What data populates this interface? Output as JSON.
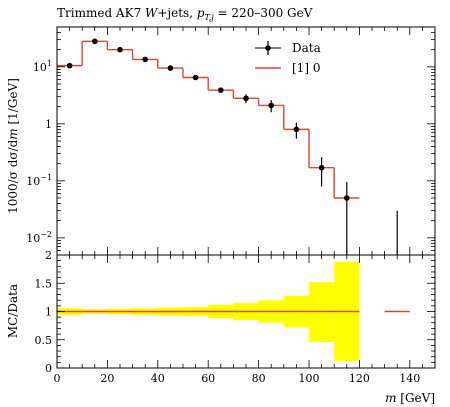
{
  "chart_data": [
    {
      "type": "line",
      "title": "Trimmed AK7 W+jets, p_{T,j} = 220–300 GeV",
      "title_parts": {
        "prefix": "Trimmed AK7 ",
        "w": "W",
        "jets": "+jets, ",
        "p": "p",
        "sub": "T,j",
        "range": " = 220–300 GeV"
      },
      "ylabel": "1000/σ dσ/dm [1/GeV]",
      "ylabel_parts": {
        "main": "1000/σ dσ/d",
        "m": "m",
        "unit": " [1/GeV]"
      },
      "y_scale": "log",
      "ylim": [
        0.005,
        50
      ],
      "xlim": [
        0,
        150
      ],
      "y_tick_labels": [
        {
          "value": 10,
          "base": "10",
          "exp": "1"
        },
        {
          "value": 1,
          "base": "1",
          "exp": ""
        },
        {
          "value": 0.1,
          "base": "10",
          "exp": "−1"
        },
        {
          "value": 0.01,
          "base": "10",
          "exp": "−2"
        }
      ],
      "legend": {
        "placement": "top-right",
        "entries": [
          {
            "label": "Data",
            "style": "marker"
          },
          {
            "label": "[1] 0",
            "style": "line"
          }
        ]
      },
      "series": [
        {
          "name": "Data",
          "points": [
            {
              "x": 5,
              "y": 10.5,
              "err": 0.6
            },
            {
              "x": 15,
              "y": 28,
              "err": 1.2
            },
            {
              "x": 25,
              "y": 20,
              "err": 1.0
            },
            {
              "x": 35,
              "y": 13.5,
              "err": 0.8
            },
            {
              "x": 45,
              "y": 9.5,
              "err": 0.7
            },
            {
              "x": 55,
              "y": 6.5,
              "err": 0.5
            },
            {
              "x": 65,
              "y": 3.9,
              "err": 0.35
            },
            {
              "x": 75,
              "y": 2.8,
              "err": 0.5
            },
            {
              "x": 85,
              "y": 2.1,
              "err": 0.5
            },
            {
              "x": 95,
              "y": 0.8,
              "err": 0.25
            },
            {
              "x": 105,
              "y": 0.17,
              "err": 0.09
            },
            {
              "x": 115,
              "y": 0.05,
              "err": 0.045
            },
            {
              "x": 135,
              "y": 0.0,
              "err": 0.03
            }
          ]
        },
        {
          "name": "[1] 0",
          "color": "#e8402a",
          "bins": [
            {
              "x0": 0,
              "x1": 10,
              "y": 10.5
            },
            {
              "x0": 10,
              "x1": 20,
              "y": 28
            },
            {
              "x0": 20,
              "x1": 30,
              "y": 20
            },
            {
              "x0": 30,
              "x1": 40,
              "y": 13.5
            },
            {
              "x0": 40,
              "x1": 50,
              "y": 9.5
            },
            {
              "x0": 50,
              "x1": 60,
              "y": 6.5
            },
            {
              "x0": 60,
              "x1": 70,
              "y": 3.9
            },
            {
              "x0": 70,
              "x1": 80,
              "y": 2.8
            },
            {
              "x0": 80,
              "x1": 90,
              "y": 2.1
            },
            {
              "x0": 90,
              "x1": 100,
              "y": 0.8
            },
            {
              "x0": 100,
              "x1": 110,
              "y": 0.17
            },
            {
              "x0": 110,
              "x1": 120,
              "y": 0.05
            }
          ]
        }
      ]
    },
    {
      "type": "area",
      "ylabel": "MC/Data",
      "xlabel": "m [GeV]",
      "xlabel_parts": {
        "m": "m",
        "unit": " [GeV]"
      },
      "xlim": [
        0,
        150
      ],
      "ylim": [
        0,
        2
      ],
      "x_ticks": [
        0,
        20,
        40,
        60,
        80,
        100,
        120,
        140
      ],
      "y_ticks": [
        {
          "value": 0,
          "label": "0"
        },
        {
          "value": 0.5,
          "label": "0.5"
        },
        {
          "value": 1,
          "label": "1"
        },
        {
          "value": 1.5,
          "label": "1.5"
        },
        {
          "value": 2,
          "label": "2"
        }
      ],
      "uncertainty_color": "#ffff00",
      "ratio_color": "#e8402a",
      "uncertainty_bands": [
        {
          "x0": 0,
          "x1": 10,
          "lo": 0.94,
          "hi": 1.06
        },
        {
          "x0": 10,
          "x1": 20,
          "lo": 0.96,
          "hi": 1.04
        },
        {
          "x0": 20,
          "x1": 30,
          "lo": 0.95,
          "hi": 1.05
        },
        {
          "x0": 30,
          "x1": 40,
          "lo": 0.94,
          "hi": 1.06
        },
        {
          "x0": 40,
          "x1": 50,
          "lo": 0.93,
          "hi": 1.07
        },
        {
          "x0": 50,
          "x1": 60,
          "lo": 0.92,
          "hi": 1.08
        },
        {
          "x0": 60,
          "x1": 70,
          "lo": 0.88,
          "hi": 1.12
        },
        {
          "x0": 70,
          "x1": 80,
          "lo": 0.85,
          "hi": 1.15
        },
        {
          "x0": 80,
          "x1": 90,
          "lo": 0.8,
          "hi": 1.2
        },
        {
          "x0": 90,
          "x1": 100,
          "lo": 0.72,
          "hi": 1.28
        },
        {
          "x0": 100,
          "x1": 110,
          "lo": 0.46,
          "hi": 1.52
        },
        {
          "x0": 110,
          "x1": 120,
          "lo": 0.12,
          "hi": 1.88
        }
      ],
      "ratio_segments": [
        {
          "x0": 0,
          "x1": 120,
          "y": 1.0
        },
        {
          "x0": 130,
          "x1": 140,
          "y": 1.0
        }
      ]
    }
  ]
}
